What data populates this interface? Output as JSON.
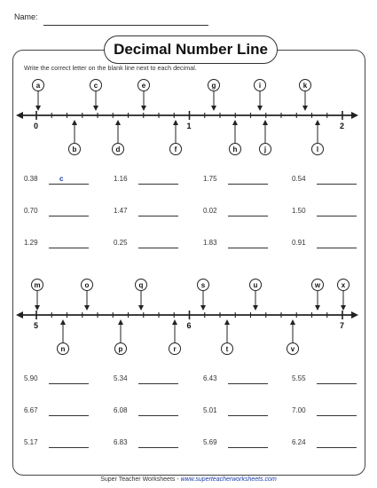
{
  "header": {
    "name_label": "Name:"
  },
  "title": "Decimal Number Line",
  "instructions": "Write the correct letter on the blank line next to each decimal.",
  "line1": {
    "start_label": "0",
    "mid_label": "1",
    "end_label": "2",
    "top_letters": [
      "a",
      "c",
      "e",
      "g",
      "i",
      "k"
    ],
    "bottom_letters": [
      "b",
      "d",
      "f",
      "h",
      "j",
      "l"
    ]
  },
  "questions1": [
    {
      "value": "0.38",
      "answer": "c"
    },
    {
      "value": "1.16",
      "answer": ""
    },
    {
      "value": "1.75",
      "answer": ""
    },
    {
      "value": "0.54",
      "answer": ""
    },
    {
      "value": "0.70",
      "answer": ""
    },
    {
      "value": "1.47",
      "answer": ""
    },
    {
      "value": "0.02",
      "answer": ""
    },
    {
      "value": "1.50",
      "answer": ""
    },
    {
      "value": "1.29",
      "answer": ""
    },
    {
      "value": "0.25",
      "answer": ""
    },
    {
      "value": "1.83",
      "answer": ""
    },
    {
      "value": "0.91",
      "answer": ""
    }
  ],
  "line2": {
    "start_label": "5",
    "mid_label": "6",
    "end_label": "7",
    "top_letters": [
      "m",
      "o",
      "q",
      "s",
      "u",
      "w",
      "x"
    ],
    "bottom_letters": [
      "n",
      "p",
      "r",
      "t",
      "v"
    ]
  },
  "questions2": [
    {
      "value": "5.90",
      "answer": ""
    },
    {
      "value": "5.34",
      "answer": ""
    },
    {
      "value": "6.43",
      "answer": ""
    },
    {
      "value": "5.55",
      "answer": ""
    },
    {
      "value": "6.67",
      "answer": ""
    },
    {
      "value": "6.08",
      "answer": ""
    },
    {
      "value": "5.01",
      "answer": ""
    },
    {
      "value": "7.00",
      "answer": ""
    },
    {
      "value": "5.17",
      "answer": ""
    },
    {
      "value": "6.83",
      "answer": ""
    },
    {
      "value": "5.69",
      "answer": ""
    },
    {
      "value": "6.24",
      "answer": ""
    }
  ],
  "footer": {
    "text": "Super Teacher Worksheets - ",
    "url": "www.superteacherworksheets.com"
  }
}
